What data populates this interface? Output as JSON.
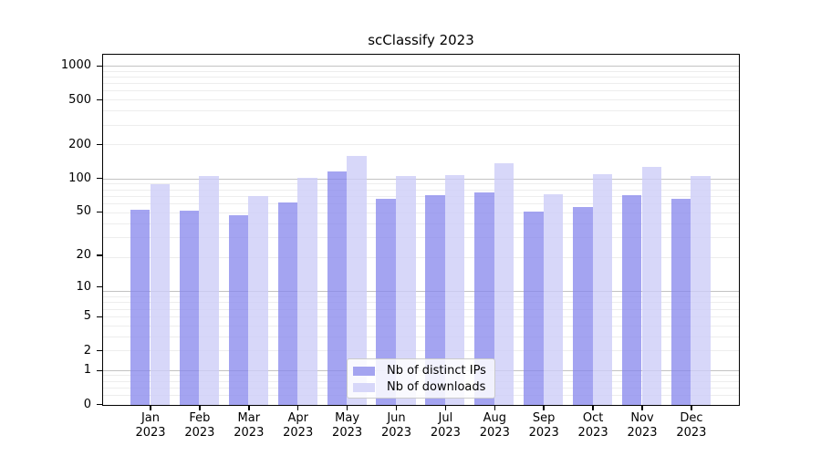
{
  "figure": {
    "background": "#ffffff"
  },
  "chart_data": {
    "type": "bar",
    "title": "scClassify 2023",
    "year": "2023",
    "categories": [
      "Jan",
      "Feb",
      "Mar",
      "Apr",
      "May",
      "Jun",
      "Jul",
      "Aug",
      "Sep",
      "Oct",
      "Nov",
      "Dec"
    ],
    "series": [
      {
        "name": "Nb of distinct IPs",
        "bar_color": "rgba(134,134,236,0.75)",
        "legend_color": "#a4a4f0",
        "values": [
          53,
          52,
          47,
          62,
          117,
          66,
          72,
          76,
          51,
          56,
          72,
          66
        ]
      },
      {
        "name": "Nb of downloads",
        "bar_color": "rgba(205,205,248,0.80)",
        "legend_color": "#d7d7f9",
        "values": [
          90,
          107,
          70,
          103,
          161,
          107,
          109,
          138,
          73,
          111,
          129,
          107
        ]
      }
    ],
    "yticks": [
      1000,
      500,
      200,
      100,
      50,
      20,
      10,
      5,
      2,
      1,
      0
    ],
    "xlabel": "",
    "ylabel": "",
    "yscale": "log1p",
    "ylim": [
      0,
      1275
    ],
    "grid": true,
    "legend_position": "lower-center"
  },
  "colors": {
    "grid_major": "#c3c3c3",
    "grid_minor": "#ededed",
    "axis": "#000000",
    "text": "#000000",
    "legend_border": "#cbcbcb"
  }
}
